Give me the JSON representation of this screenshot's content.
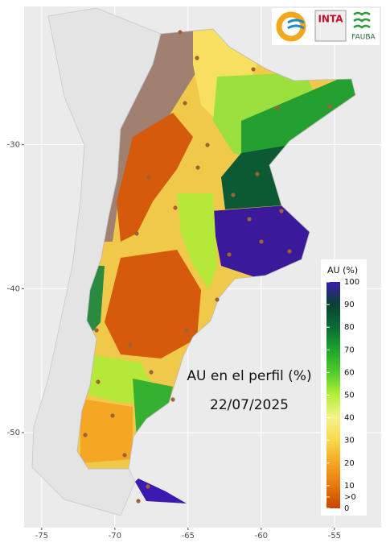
{
  "map": {
    "xlim": [
      -76.2,
      -51.8
    ],
    "ylim": [
      -56.6,
      -20.4
    ],
    "xticks": [
      -75,
      -70,
      -65,
      -60,
      -55
    ],
    "yticks": [
      -30,
      -40,
      -50
    ],
    "annotation": "AU en el perfil (%)",
    "date": "22/07/2025",
    "legend": {
      "title": "AU (%)",
      "lim": [
        0,
        100
      ],
      "ticks": [
        100,
        90,
        80,
        70,
        60,
        50,
        40,
        30,
        20,
        10,
        {
          "value": 5,
          "label": ">0"
        },
        0
      ]
    },
    "logos": [
      "INTA",
      "FAUBA"
    ]
  }
}
